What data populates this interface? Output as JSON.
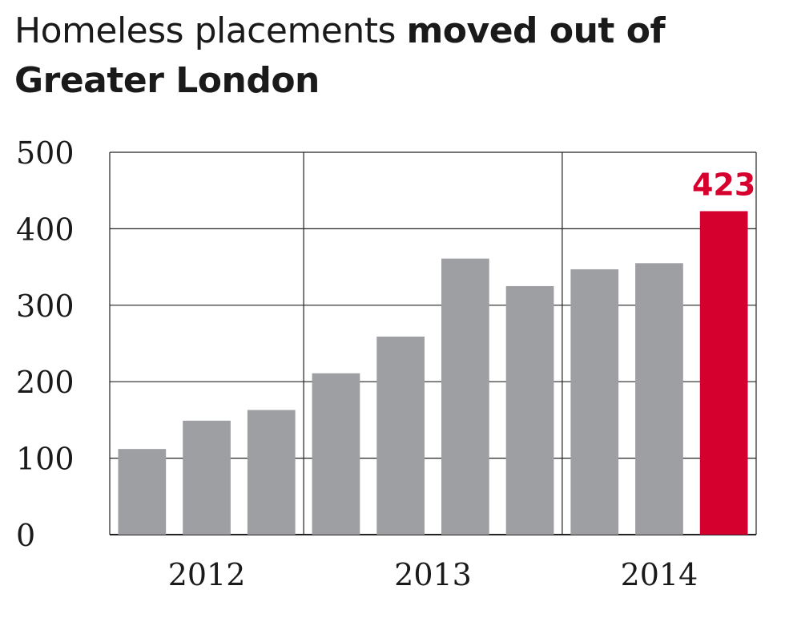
{
  "title": {
    "regular": "Homeless placements ",
    "bold": "moved out of Greater London"
  },
  "colors": {
    "bar": "#9d9fa2",
    "highlight": "#d6002f",
    "grid": "#222222"
  },
  "chart_data": {
    "type": "bar",
    "title": "Homeless placements moved out of Greater London",
    "xlabel": "",
    "ylabel": "",
    "ylim": [
      0,
      500
    ],
    "yticks": [
      "0",
      "100",
      "200",
      "300",
      "400",
      "500"
    ],
    "year_labels": [
      "2012",
      "2013",
      "2014"
    ],
    "values": [
      112,
      149,
      163,
      211,
      259,
      361,
      325,
      347,
      355,
      423
    ],
    "highlight_index": 9,
    "highlight_label": "423",
    "grid": true,
    "legend": "none"
  }
}
